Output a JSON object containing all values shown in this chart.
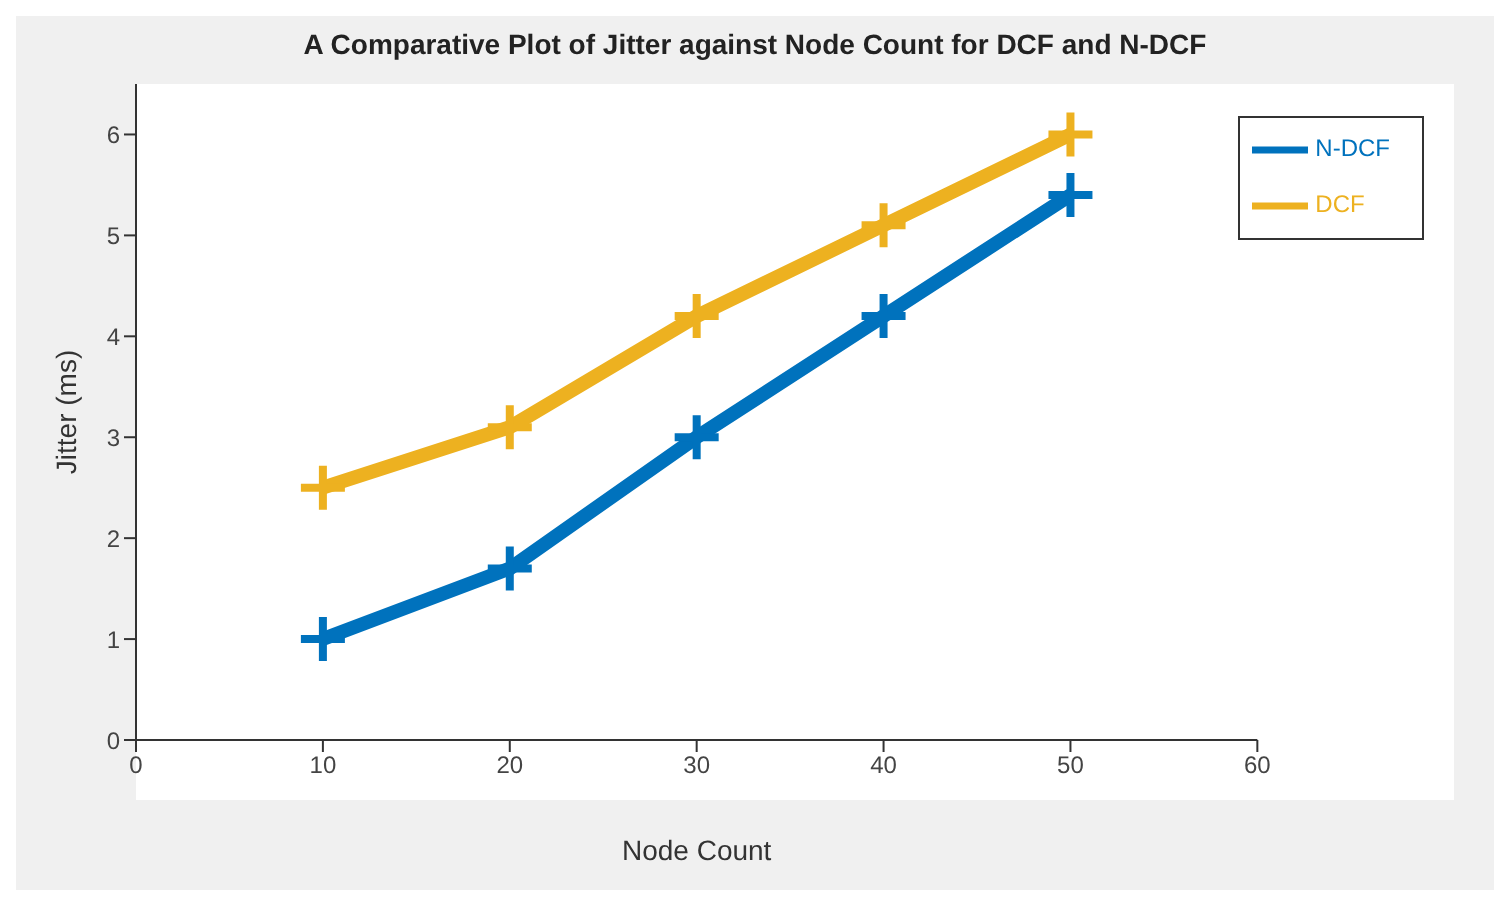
{
  "chart_data": {
    "type": "line",
    "title": "A Comparative Plot of Jitter against Node Count for DCF and N-DCF",
    "xlabel": "Node Count",
    "ylabel": "Jitter  (ms)",
    "x": [
      10,
      20,
      30,
      40,
      50
    ],
    "series": [
      {
        "name": "N-DCF",
        "color": "#0072bd",
        "values": [
          1.0,
          1.7,
          3.0,
          4.2,
          5.4
        ]
      },
      {
        "name": "DCF",
        "color": "#edb120",
        "values": [
          2.5,
          3.1,
          4.2,
          5.1,
          6.0
        ]
      }
    ],
    "xlim": [
      0,
      60
    ],
    "xticks": [
      0,
      10,
      20,
      30,
      40,
      50,
      60
    ],
    "ylim": [
      0,
      6.5
    ],
    "yticks": [
      0,
      1,
      2,
      3,
      4,
      5,
      6
    ],
    "grid": false,
    "legend": "top right",
    "marker": "cross",
    "line_style": "solid"
  }
}
